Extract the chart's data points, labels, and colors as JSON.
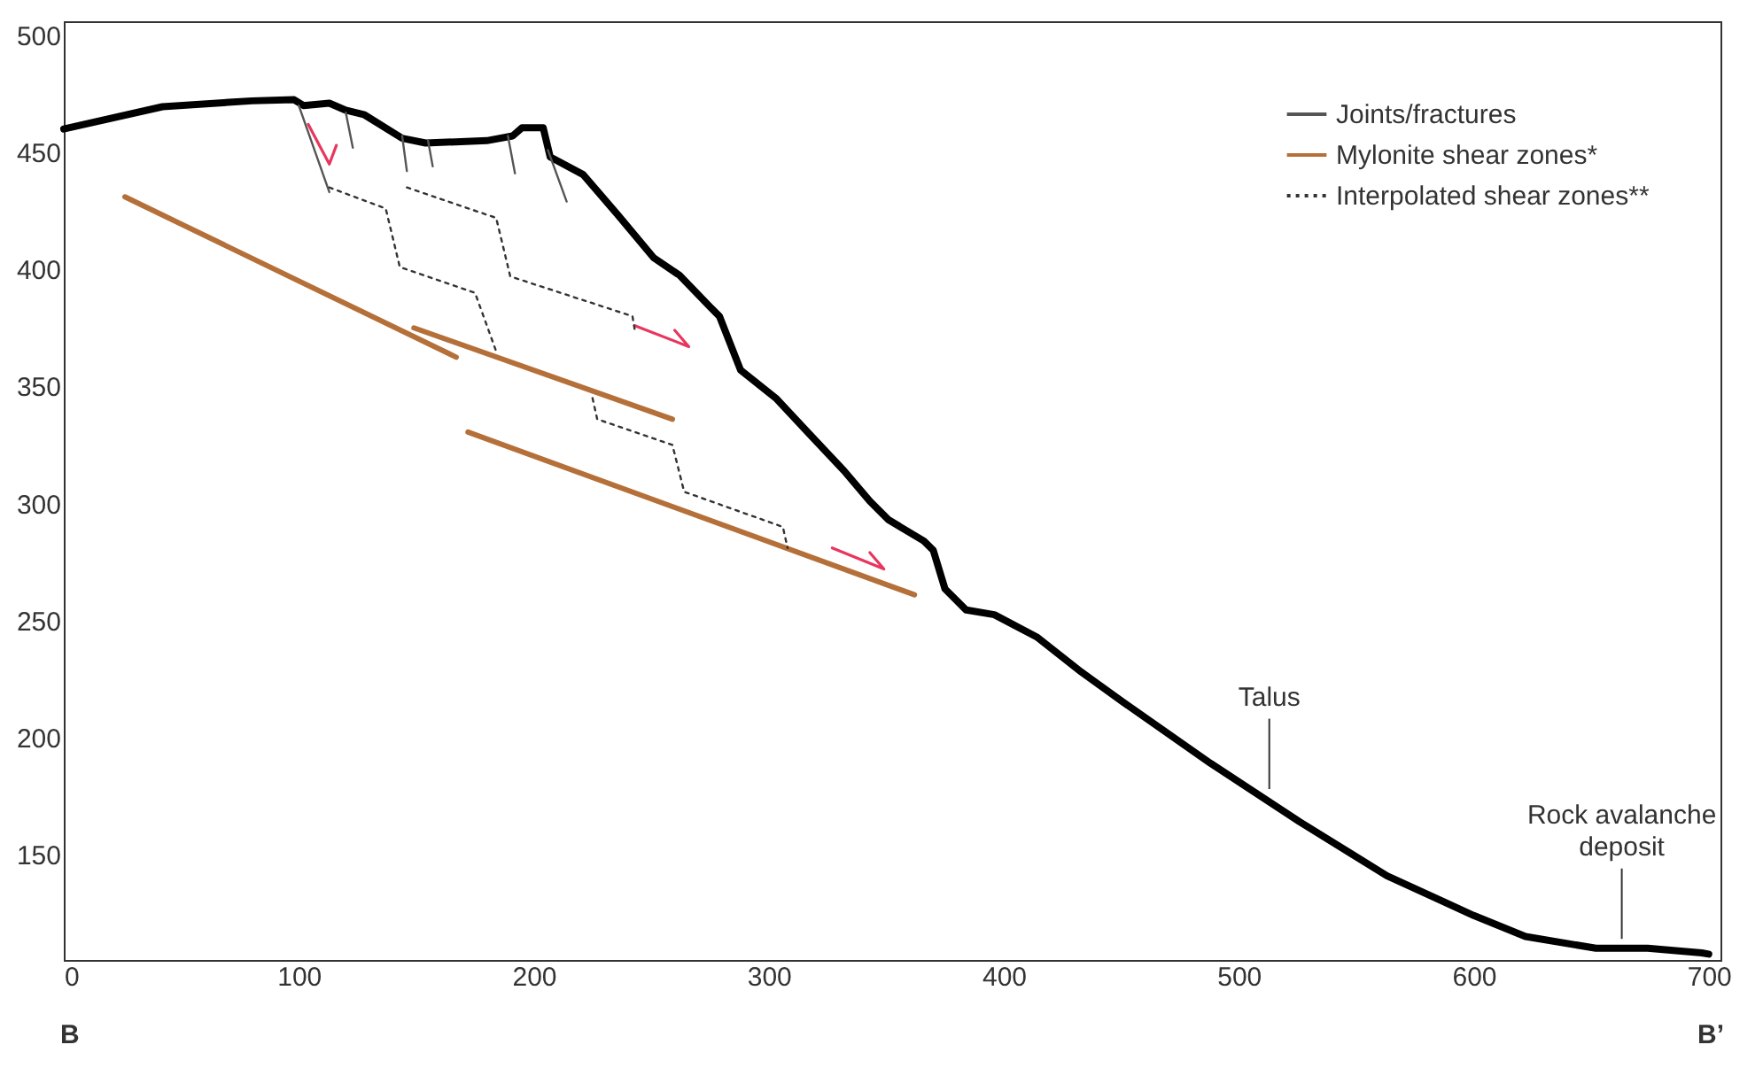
{
  "chart_data": {
    "type": "line",
    "xlim": [
      0,
      705
    ],
    "xticks": [
      0,
      100,
      200,
      300,
      400,
      500,
      600,
      700
    ],
    "ylim": [
      105,
      506
    ],
    "yticks": [
      150,
      200,
      250,
      300,
      350,
      400,
      450,
      500
    ],
    "grid": false,
    "legend": "top right",
    "annotations": [
      {
        "text": "Talus",
        "x": 513,
        "y": 178
      },
      {
        "text": "Rock avalanche deposit",
        "x": 663,
        "y": 114
      },
      "B",
      "B’"
    ],
    "series": [
      {
        "color": "#000000",
        "line_style": "solid",
        "x": [
          0,
          42,
          80,
          98,
          102,
          113,
          120,
          128,
          144,
          154,
          180,
          191,
          195,
          204,
          207,
          221,
          236,
          251,
          262,
          275,
          279,
          288,
          303,
          317,
          332,
          343,
          351,
          366,
          370,
          375,
          384,
          396,
          414,
          433,
          451,
          488,
          526,
          563,
          600,
          622,
          652,
          674,
          697,
          700
        ],
        "values": [
          460,
          469.5,
          472,
          472.5,
          470,
          471,
          468,
          466,
          456,
          454,
          455,
          457,
          460.5,
          460.5,
          448,
          440.5,
          423,
          405,
          397.5,
          384,
          380,
          357,
          345,
          330,
          314,
          301,
          293,
          284,
          280,
          263.5,
          254.5,
          252.5,
          243,
          228,
          215,
          189,
          164,
          141,
          124,
          115,
          110,
          110,
          108,
          107.5
        ]
      },
      {
        "color": "#e8365d",
        "line_style": "solid",
        "x": [
          104,
          113,
          116
        ],
        "values": [
          462,
          445,
          453
        ]
      },
      {
        "color": "#e8365d",
        "line_style": "solid",
        "x": [
          243,
          266,
          260
        ],
        "values": [
          376,
          367,
          374
        ]
      },
      {
        "color": "#e8365d",
        "line_style": "solid",
        "x": [
          327,
          349,
          343
        ],
        "values": [
          281,
          272,
          279
        ]
      },
      {
        "name": "Joints/fractures",
        "color": "#555555",
        "line_style": "solid",
        "x": [
          100,
          113
        ],
        "values": [
          470,
          433
        ]
      },
      {
        "color": "#555555",
        "line_style": "solid",
        "x": [
          120,
          123
        ],
        "values": [
          467,
          452
        ]
      },
      {
        "color": "#555555",
        "line_style": "solid",
        "x": [
          144,
          146
        ],
        "values": [
          457,
          442
        ]
      },
      {
        "color": "#555555",
        "line_style": "solid",
        "x": [
          155,
          157
        ],
        "values": [
          455,
          444
        ]
      },
      {
        "color": "#555555",
        "line_style": "solid",
        "x": [
          189,
          192
        ],
        "values": [
          457,
          441
        ]
      },
      {
        "color": "#555555",
        "line_style": "solid",
        "x": [
          206,
          214
        ],
        "values": [
          451,
          429
        ]
      },
      {
        "name": "Mylonite shear zones*",
        "color": "#b5703a",
        "line_style": "solid",
        "x": [
          26,
          167
        ],
        "values": [
          431,
          362.5
        ]
      },
      {
        "color": "#b5703a",
        "line_style": "solid",
        "x": [
          149,
          259
        ],
        "values": [
          375,
          336
        ]
      },
      {
        "color": "#b5703a",
        "line_style": "solid",
        "x": [
          172,
          362
        ],
        "values": [
          330.5,
          261
        ]
      },
      {
        "name": "Interpolated shear zones**",
        "color": "#333333",
        "line_style": "dotted",
        "x": [
          113,
          137,
          143,
          175,
          184
        ],
        "values": [
          435,
          426,
          401,
          390,
          365
        ]
      },
      {
        "color": "#333333",
        "line_style": "dotted",
        "x": [
          225,
          227,
          259,
          264,
          306,
          308
        ],
        "values": [
          345,
          336,
          325,
          305,
          290,
          281
        ]
      },
      {
        "color": "#333333",
        "line_style": "dotted",
        "x": [
          146,
          184,
          190,
          242,
          243
        ],
        "values": [
          435,
          422,
          397,
          380,
          374
        ]
      }
    ]
  }
}
